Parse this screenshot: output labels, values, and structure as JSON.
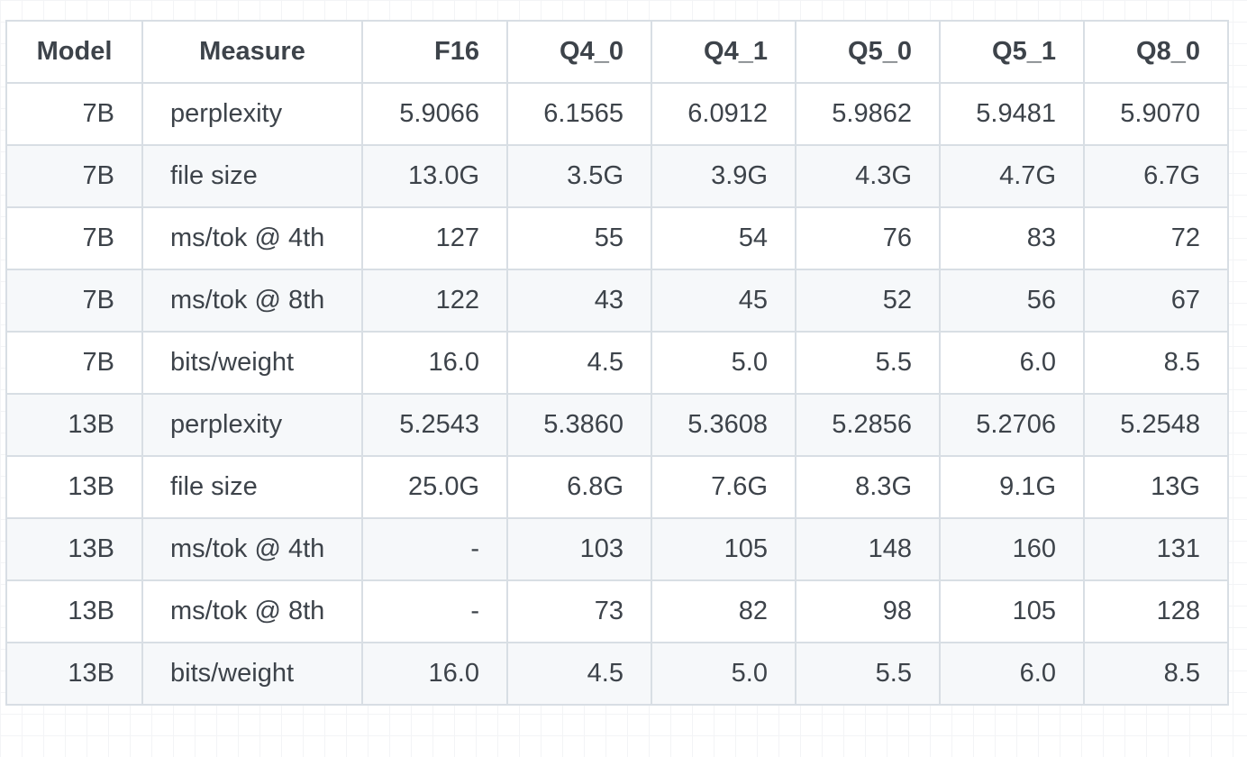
{
  "table": {
    "headers": [
      "Model",
      "Measure",
      "F16",
      "Q4_0",
      "Q4_1",
      "Q5_0",
      "Q5_1",
      "Q8_0"
    ],
    "rows": [
      [
        "7B",
        "perplexity",
        "5.9066",
        "6.1565",
        "6.0912",
        "5.9862",
        "5.9481",
        "5.9070"
      ],
      [
        "7B",
        "file size",
        "13.0G",
        "3.5G",
        "3.9G",
        "4.3G",
        "4.7G",
        "6.7G"
      ],
      [
        "7B",
        "ms/tok @ 4th",
        "127",
        "55",
        "54",
        "76",
        "83",
        "72"
      ],
      [
        "7B",
        "ms/tok @ 8th",
        "122",
        "43",
        "45",
        "52",
        "56",
        "67"
      ],
      [
        "7B",
        "bits/weight",
        "16.0",
        "4.5",
        "5.0",
        "5.5",
        "6.0",
        "8.5"
      ],
      [
        "13B",
        "perplexity",
        "5.2543",
        "5.3860",
        "5.3608",
        "5.2856",
        "5.2706",
        "5.2548"
      ],
      [
        "13B",
        "file size",
        "25.0G",
        "6.8G",
        "7.6G",
        "8.3G",
        "9.1G",
        "13G"
      ],
      [
        "13B",
        "ms/tok @ 4th",
        "-",
        "103",
        "105",
        "148",
        "160",
        "131"
      ],
      [
        "13B",
        "ms/tok @ 8th",
        "-",
        "73",
        "82",
        "98",
        "105",
        "128"
      ],
      [
        "13B",
        "bits/weight",
        "16.0",
        "4.5",
        "5.0",
        "5.5",
        "6.0",
        "8.5"
      ]
    ]
  }
}
